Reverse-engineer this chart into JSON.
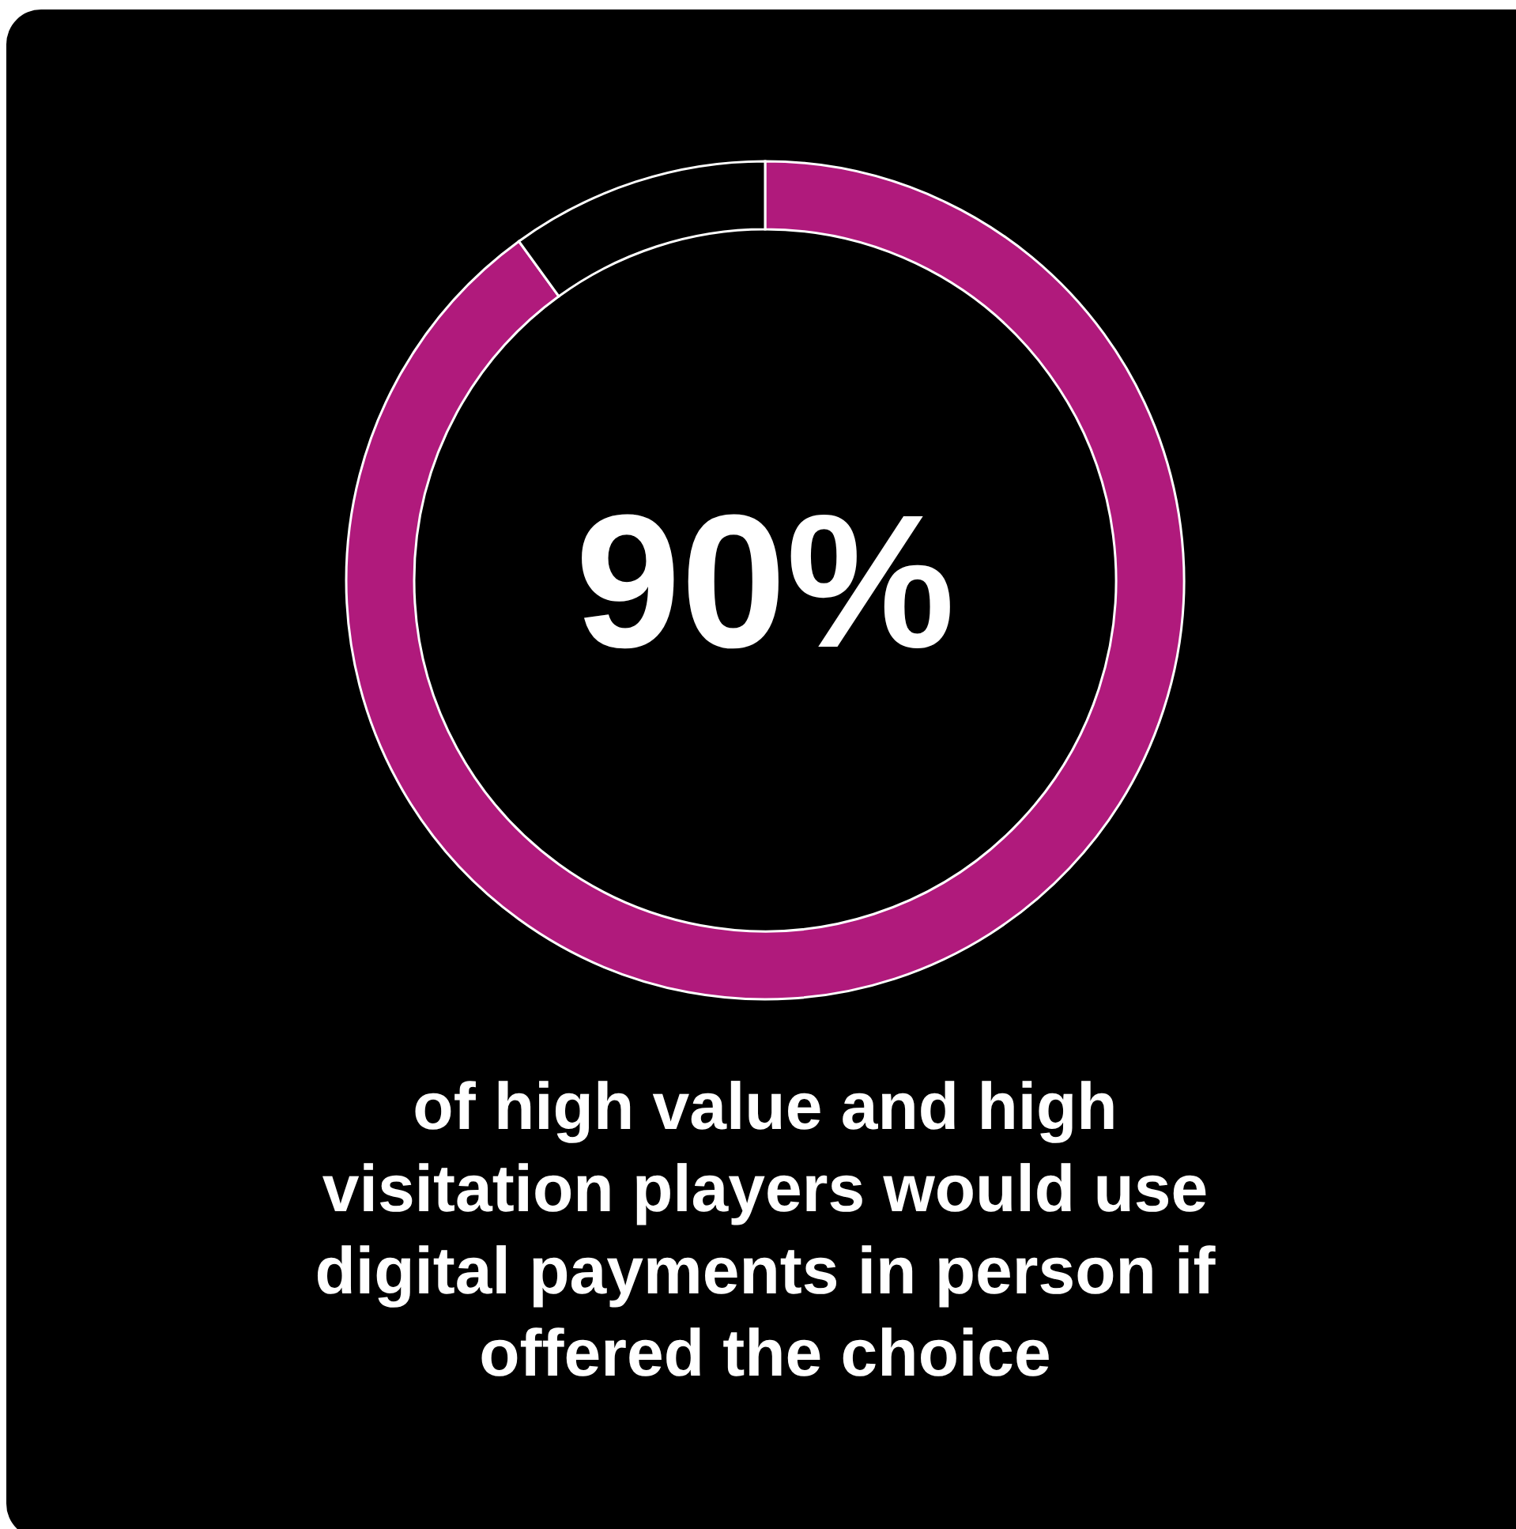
{
  "chart_data": {
    "type": "donut",
    "categories": [
      null,
      null
    ],
    "values": [
      90,
      10
    ],
    "colors": [
      "#b01a7c",
      "#000000"
    ],
    "value_labels": [
      "90%",
      null
    ],
    "annotations": [
      "of high value and high visitation players would use digital payments in person if offered the choice"
    ]
  }
}
